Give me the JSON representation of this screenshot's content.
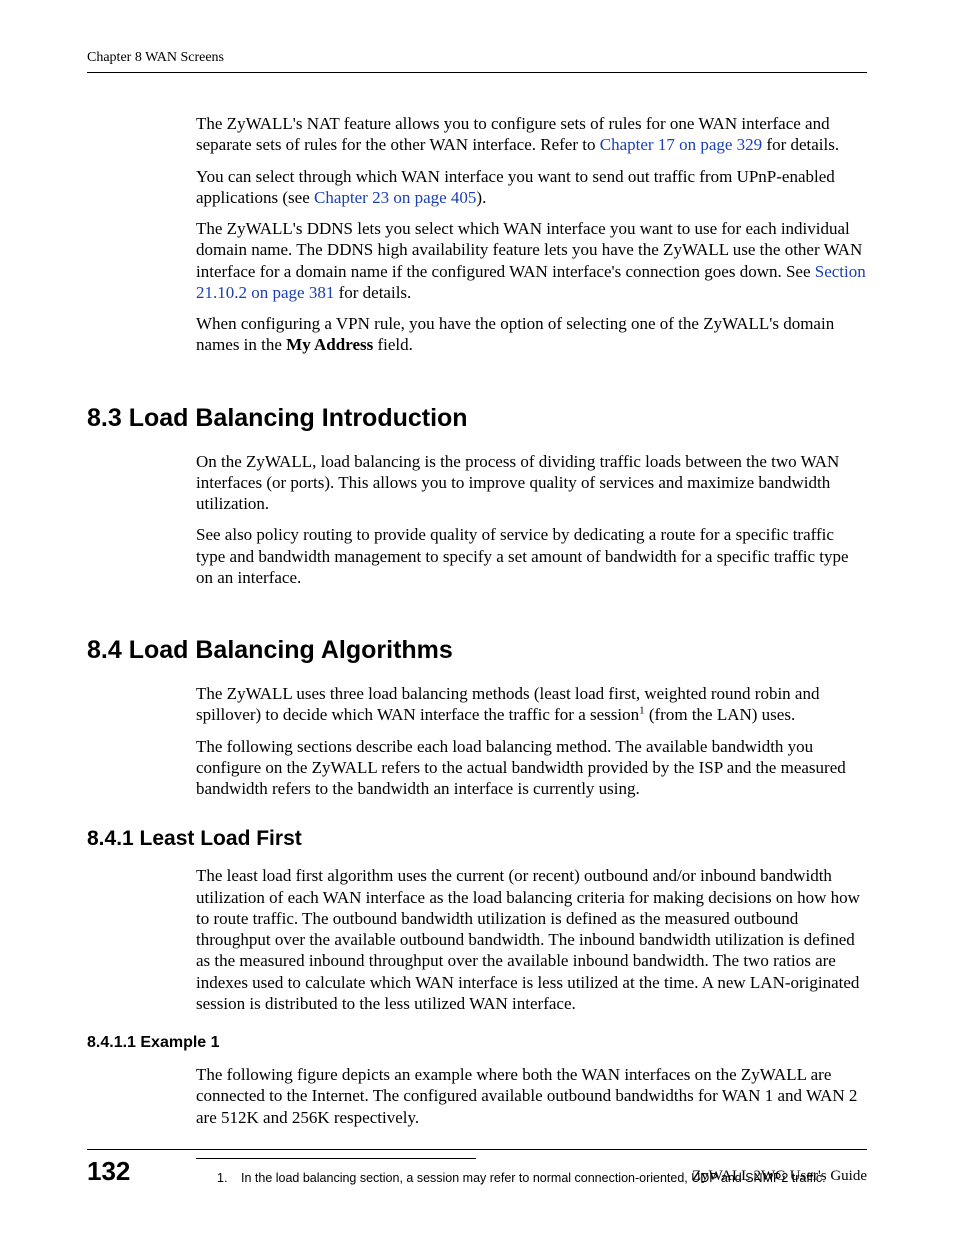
{
  "header": {
    "chapter_label": "Chapter 8 WAN Screens"
  },
  "paragraphs": {
    "p1_a": "The ZyWALL's NAT feature allows you to configure sets of rules for one WAN interface and separate sets of rules for the other WAN interface. Refer to ",
    "p1_link": "Chapter 17 on page 329",
    "p1_b": " for details.",
    "p2_a": "You can select through which WAN interface you want to send out traffic from UPnP-enabled applications (see ",
    "p2_link": "Chapter 23 on page 405",
    "p2_b": ").",
    "p3_a": "The ZyWALL's DDNS lets you select which WAN interface you want to use for each individual domain name. The DDNS high availability feature lets you have the ZyWALL use the other WAN interface for a domain name if the configured WAN interface's connection goes down. See ",
    "p3_link": "Section 21.10.2 on page 381",
    "p3_b": " for details.",
    "p4_a": "When configuring a VPN rule, you have the option of selecting one of the ZyWALL's domain names in the ",
    "p4_bold": "My Address",
    "p4_b": " field."
  },
  "sections": {
    "s83": {
      "title": "8.3  Load Balancing Introduction",
      "p1": "On the ZyWALL, load balancing is the process of dividing traffic loads between the two WAN interfaces (or ports). This allows you to improve quality of services and maximize bandwidth utilization.",
      "p2": "See also policy routing to provide quality of service by dedicating a route for a specific traffic type and bandwidth management to specify a set amount of bandwidth for a specific traffic type on an interface."
    },
    "s84": {
      "title": "8.4  Load Balancing Algorithms",
      "p1_a": "The ZyWALL uses three load balancing methods (least load first, weighted round robin and spillover) to decide which WAN interface the traffic for a session",
      "p1_sup": "1",
      "p1_b": " (from the LAN) uses.",
      "p2": "The following sections describe each load balancing method. The available bandwidth you configure on the ZyWALL refers to the actual bandwidth provided by the ISP and the measured bandwidth refers to the bandwidth an interface is currently using."
    },
    "s841": {
      "title": "8.4.1  Least Load First",
      "p1": "The least load first algorithm uses the current (or recent) outbound and/or inbound bandwidth utilization of each WAN interface as the load balancing criteria for making decisions on how how to route traffic. The outbound bandwidth utilization is defined as the measured outbound throughput over the available outbound bandwidth. The inbound bandwidth utilization is defined as the measured inbound throughput over the available inbound bandwidth. The two ratios are indexes used to calculate which WAN interface is less utilized at the time. A new LAN-originated session is distributed to the less utilized WAN interface."
    },
    "s8411": {
      "title": "8.4.1.1  Example 1",
      "p1": "The following figure depicts an example where both the WAN interfaces on the ZyWALL are connected to the Internet. The configured available outbound bandwidths for WAN 1 and WAN 2 are 512K and 256K respectively."
    }
  },
  "footnote": {
    "num": "1.",
    "text": "In the load balancing section, a session may refer to normal connection-oriented, UDP and SNMP2 traffic."
  },
  "footer": {
    "page_number": "132",
    "guide": "ZyWALL 2WG User's Guide"
  },
  "colors": {
    "link": "#1a3fb5",
    "text": "#000000",
    "background": "#ffffff"
  },
  "typography": {
    "body_family": "Times New Roman",
    "heading_family": "Arial",
    "body_fontsize": 17,
    "h2_fontsize": 25,
    "h3_fontsize": 21,
    "h4_fontsize": 16,
    "footnote_fontsize": 12.5,
    "pagenum_fontsize": 26
  }
}
